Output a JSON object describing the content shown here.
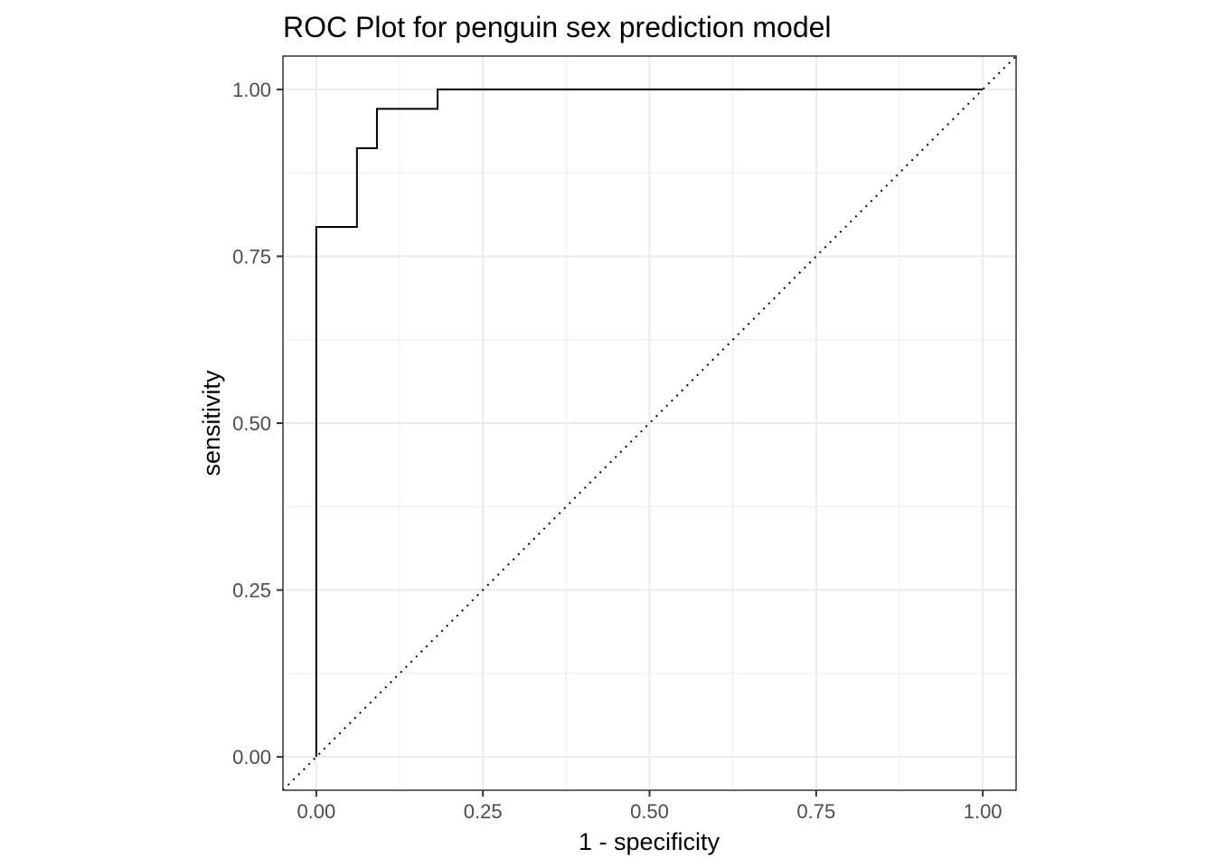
{
  "chart_data": {
    "type": "line",
    "title": "ROC Plot for penguin sex prediction model",
    "xlabel": "1 - specificity",
    "ylabel": "sensitivity",
    "xlim": [
      -0.05,
      1.05
    ],
    "ylim": [
      -0.05,
      1.05
    ],
    "x_ticks": [
      0,
      0.25,
      0.5,
      0.75,
      1
    ],
    "x_tick_labels": [
      "0.00",
      "0.25",
      "0.50",
      "0.75",
      "1.00"
    ],
    "y_ticks": [
      0,
      0.25,
      0.5,
      0.75,
      1
    ],
    "y_tick_labels": [
      "0.00",
      "0.25",
      "0.50",
      "0.75",
      "1.00"
    ],
    "grid": true,
    "series": [
      {
        "style": "step",
        "x": [
          0,
          0,
          0.061,
          0.061,
          0.091,
          0.091,
          0.182,
          0.182,
          1
        ],
        "y": [
          0,
          0.794,
          0.794,
          0.912,
          0.912,
          0.971,
          0.971,
          1,
          1
        ]
      }
    ],
    "reference_line": {
      "style": "dotted",
      "x": [
        -0.05,
        1.05
      ],
      "y": [
        -0.05,
        1.05
      ]
    },
    "colors": {
      "line": "#000000",
      "grid": "#ebebeb",
      "panel_border": "#333333",
      "tick_text": "#4d4d4d"
    }
  }
}
